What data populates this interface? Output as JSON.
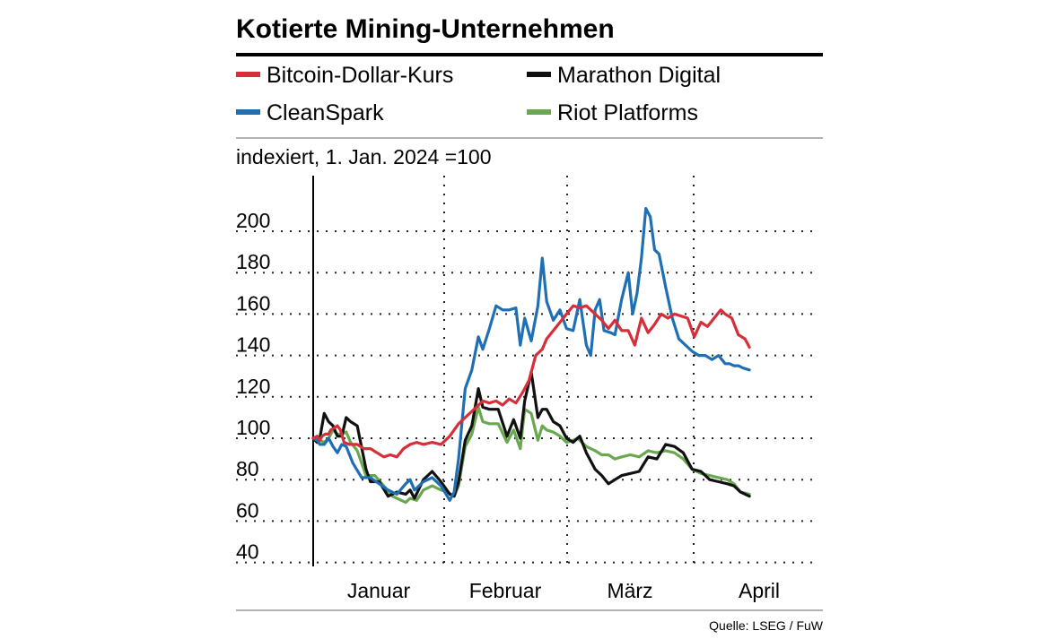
{
  "chart_data": {
    "type": "line",
    "title": "Kotierte Mining-Unternehmen",
    "subtitle": "indexiert, 1. Jan. 2024 =100",
    "source": "Quelle: LSEG / FuW",
    "yticks": [
      200,
      180,
      160,
      140,
      120,
      100,
      80,
      60,
      40
    ],
    "ylim": [
      40,
      210
    ],
    "xlim": [
      0,
      1
    ],
    "month_labels": [
      "Januar",
      "Februar",
      "März",
      "April"
    ],
    "grid": "dotted",
    "legend_position": "top",
    "series": [
      {
        "name": "Bitcoin-Dollar-Kurs",
        "color": "#d62f3a",
        "x": [
          0,
          0.009,
          0.015,
          0.02,
          0.027,
          0.035,
          0.04,
          0.048,
          0.055,
          0.062,
          0.07,
          0.082,
          0.1,
          0.115,
          0.13,
          0.145,
          0.16,
          0.175,
          0.19,
          0.205,
          0.22,
          0.235,
          0.25,
          0.27,
          0.29,
          0.31,
          0.33,
          0.35,
          0.37,
          0.385,
          0.4,
          0.415,
          0.43,
          0.445,
          0.46,
          0.475,
          0.49,
          0.505,
          0.52,
          0.53,
          0.545,
          0.56,
          0.575,
          0.59,
          0.605,
          0.62,
          0.64,
          0.655,
          0.67,
          0.685,
          0.7,
          0.715,
          0.73,
          0.745,
          0.76,
          0.775,
          0.79,
          0.805,
          0.82,
          0.835,
          0.85,
          0.865,
          0.88,
          0.895,
          0.91,
          0.925,
          0.935,
          0.95,
          0.965,
          0.98,
          0.99
        ],
        "y": [
          100,
          101,
          99,
          101,
          102,
          102,
          104,
          105,
          106,
          104,
          98,
          97,
          97,
          95,
          95,
          93,
          91,
          92,
          91,
          95,
          97,
          98,
          97,
          98,
          97,
          101,
          107,
          111,
          115,
          118,
          117,
          118,
          116,
          119,
          117,
          122,
          128,
          140,
          143,
          148,
          152,
          156,
          160,
          164,
          163,
          164,
          160,
          157,
          153,
          157,
          152,
          152,
          145,
          158,
          151,
          155,
          160,
          158,
          160,
          159,
          158,
          149,
          156,
          154,
          158,
          162,
          160,
          158,
          150,
          148,
          144
        ]
      },
      {
        "name": "CleanSpark",
        "color": "#1f6fb5",
        "x": [
          0,
          0.009,
          0.015,
          0.025,
          0.035,
          0.045,
          0.055,
          0.065,
          0.075,
          0.09,
          0.11,
          0.13,
          0.15,
          0.17,
          0.19,
          0.21,
          0.22,
          0.23,
          0.25,
          0.27,
          0.29,
          0.31,
          0.32,
          0.33,
          0.345,
          0.36,
          0.375,
          0.385,
          0.4,
          0.415,
          0.43,
          0.445,
          0.46,
          0.47,
          0.48,
          0.495,
          0.51,
          0.52,
          0.53,
          0.545,
          0.56,
          0.575,
          0.59,
          0.605,
          0.62,
          0.63,
          0.64,
          0.65,
          0.66,
          0.675,
          0.685,
          0.7,
          0.715,
          0.725,
          0.735,
          0.745,
          0.755,
          0.765,
          0.775,
          0.785,
          0.8,
          0.815,
          0.83,
          0.845,
          0.86,
          0.875,
          0.89,
          0.905,
          0.92,
          0.935,
          0.945,
          0.955,
          0.965,
          0.975,
          0.99
        ],
        "y": [
          100,
          99,
          97,
          97,
          100,
          96,
          93,
          97,
          96,
          88,
          81,
          81,
          78,
          75,
          73,
          78,
          80,
          75,
          79,
          81,
          77,
          70,
          74,
          90,
          124,
          133,
          149,
          143,
          153,
          164,
          162,
          162,
          163,
          145,
          158,
          147,
          164,
          187,
          166,
          157,
          162,
          153,
          152,
          167,
          145,
          140,
          162,
          167,
          152,
          151,
          150,
          167,
          180,
          160,
          170,
          187,
          211,
          207,
          191,
          189,
          173,
          158,
          148,
          145,
          142,
          140,
          140,
          138,
          140,
          136,
          136,
          135,
          135,
          134,
          133
        ]
      },
      {
        "name": "Marathon Digital",
        "color": "#111111",
        "x": [
          0,
          0.009,
          0.015,
          0.025,
          0.035,
          0.045,
          0.055,
          0.065,
          0.075,
          0.085,
          0.1,
          0.12,
          0.13,
          0.15,
          0.17,
          0.19,
          0.21,
          0.22,
          0.23,
          0.25,
          0.27,
          0.29,
          0.31,
          0.32,
          0.33,
          0.345,
          0.36,
          0.375,
          0.385,
          0.4,
          0.42,
          0.44,
          0.455,
          0.47,
          0.48,
          0.495,
          0.51,
          0.52,
          0.53,
          0.545,
          0.56,
          0.575,
          0.59,
          0.605,
          0.62,
          0.64,
          0.655,
          0.67,
          0.685,
          0.7,
          0.72,
          0.74,
          0.76,
          0.78,
          0.8,
          0.82,
          0.84,
          0.86,
          0.88,
          0.9,
          0.92,
          0.94,
          0.955,
          0.97,
          0.99
        ],
        "y": [
          100,
          98,
          100,
          112,
          108,
          106,
          101,
          101,
          110,
          108,
          106,
          85,
          79,
          79,
          72,
          74,
          73,
          75,
          71,
          80,
          84,
          79,
          73,
          72,
          79,
          99,
          106,
          124,
          115,
          114,
          114,
          101,
          109,
          100,
          118,
          132,
          110,
          114,
          114,
          108,
          106,
          100,
          98,
          101,
          93,
          85,
          82,
          78,
          80,
          82,
          83,
          84,
          91,
          90,
          97,
          96,
          93,
          85,
          84,
          80,
          79,
          78,
          77,
          74,
          72
        ]
      },
      {
        "name": "Riot Platforms",
        "color": "#6aa84f",
        "x": [
          0,
          0.009,
          0.015,
          0.025,
          0.035,
          0.045,
          0.055,
          0.065,
          0.075,
          0.085,
          0.1,
          0.12,
          0.14,
          0.16,
          0.18,
          0.2,
          0.21,
          0.22,
          0.235,
          0.25,
          0.27,
          0.29,
          0.305,
          0.32,
          0.33,
          0.345,
          0.36,
          0.375,
          0.385,
          0.4,
          0.42,
          0.44,
          0.455,
          0.47,
          0.48,
          0.495,
          0.51,
          0.52,
          0.53,
          0.545,
          0.56,
          0.575,
          0.59,
          0.6,
          0.62,
          0.64,
          0.655,
          0.67,
          0.685,
          0.7,
          0.72,
          0.74,
          0.76,
          0.78,
          0.8,
          0.82,
          0.84,
          0.86,
          0.88,
          0.9,
          0.92,
          0.94,
          0.955,
          0.97,
          0.99
        ],
        "y": [
          100,
          98,
          99,
          98,
          100,
          104,
          102,
          102,
          103,
          98,
          94,
          82,
          82,
          77,
          72,
          70,
          69,
          71,
          70,
          75,
          77,
          75,
          74,
          72,
          77,
          96,
          102,
          115,
          108,
          107,
          107,
          98,
          104,
          95,
          114,
          112,
          99,
          106,
          104,
          103,
          101,
          98,
          99,
          100,
          96,
          94,
          92,
          92,
          90,
          91,
          92,
          91,
          94,
          93,
          94,
          93,
          90,
          85,
          83,
          82,
          81,
          80,
          78,
          74,
          73
        ]
      }
    ]
  }
}
